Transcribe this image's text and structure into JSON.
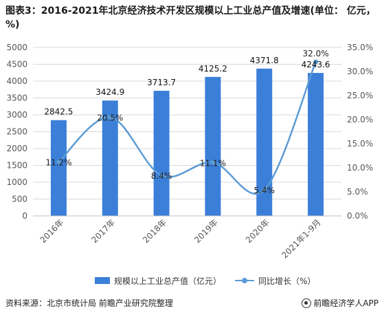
{
  "title": "图表3：2016-2021年北京经济技术开发区规模以上工业总产值及增速(单位： 亿元，%)",
  "chart_data": {
    "type": "bar",
    "categories": [
      "2016年",
      "2017年",
      "2018年",
      "2019年",
      "2020年",
      "2021年1-9月"
    ],
    "series": [
      {
        "name": "规模以上工业总产值（亿元）",
        "type": "bar",
        "axis": "left",
        "values": [
          2842.5,
          3424.9,
          3713.7,
          4125.2,
          4371.8,
          4243.6
        ],
        "labels": [
          "2842.5",
          "3424.9",
          "3713.7",
          "4125.2",
          "4371.8",
          "4243.6"
        ]
      },
      {
        "name": "同比增长（%）",
        "type": "line",
        "axis": "right",
        "values": [
          11.2,
          20.5,
          8.4,
          11.1,
          5.4,
          32.0
        ],
        "labels": [
          "11.2%",
          "20.5%",
          "8.4%",
          "11.1%",
          "5.4%",
          "32.0%"
        ]
      }
    ],
    "y_left": {
      "min": 0,
      "max": 5000,
      "step": 500,
      "ticks": [
        "0",
        "500",
        "1000",
        "1500",
        "2000",
        "2500",
        "3000",
        "3500",
        "4000",
        "4500",
        "5000"
      ]
    },
    "y_right": {
      "min": 0,
      "max": 35,
      "step": 5,
      "ticks": [
        "0.0%",
        "5.0%",
        "10.0%",
        "15.0%",
        "20.0%",
        "25.0%",
        "30.0%",
        "35.0%"
      ]
    },
    "grid": true,
    "legend_position": "bottom",
    "colors": {
      "bar": "#3b7fd9",
      "line": "#5b9bd5",
      "grid": "#d9d9d9"
    }
  },
  "source": "资料来源：北京市统计局 前瞻产业研究院整理",
  "brand": "前瞻经济学人APP"
}
